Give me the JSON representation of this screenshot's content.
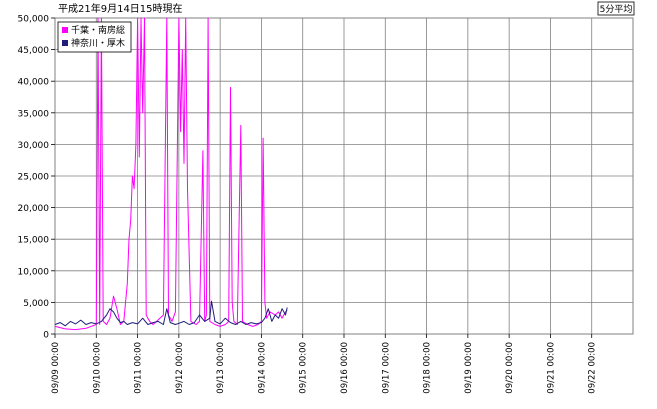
{
  "chart_data": {
    "type": "line",
    "title": "平成21年9月14日15時現在",
    "badge": "5分平均",
    "xlabel": "",
    "ylabel": "",
    "ylim": [
      0,
      50000
    ],
    "y_ticks": [
      0,
      5000,
      10000,
      15000,
      20000,
      25000,
      30000,
      35000,
      40000,
      45000,
      50000
    ],
    "y_tick_labels": [
      "0",
      "5,000",
      "10,000",
      "15,000",
      "20,000",
      "25,000",
      "30,000",
      "35,000",
      "40,000",
      "45,000",
      "50,000"
    ],
    "x_range": [
      "2009-09-09 00:00",
      "2009-09-23 00:00"
    ],
    "x_ticks": [
      "2009-09-09 00:00",
      "2009-09-10 00:00",
      "2009-09-11 00:00",
      "2009-09-12 00:00",
      "2009-09-13 00:00",
      "2009-09-14 00:00",
      "2009-09-15 00:00",
      "2009-09-16 00:00",
      "2009-09-17 00:00",
      "2009-09-18 00:00",
      "2009-09-19 00:00",
      "2009-09-20 00:00",
      "2009-09-21 00:00",
      "2009-09-22 00:00"
    ],
    "x_tick_labels": [
      "09/09 00:00",
      "09/10 00:00",
      "09/11 00:00",
      "09/12 00:00",
      "09/13 00:00",
      "09/14 00:00",
      "09/15 00:00",
      "09/16 00:00",
      "09/17 00:00",
      "09/18 00:00",
      "09/19 00:00",
      "09/20 00:00",
      "09/21 00:00",
      "09/22 00:00"
    ],
    "grid": true,
    "legend_position": "top-left",
    "series": [
      {
        "name": "千葉・南房総",
        "color": "#ff00ff",
        "points": [
          [
            "2009-09-09 00:00",
            1200
          ],
          [
            "2009-09-09 06:00",
            800
          ],
          [
            "2009-09-09 12:00",
            700
          ],
          [
            "2009-09-09 18:00",
            900
          ],
          [
            "2009-09-10 00:00",
            1500
          ],
          [
            "2009-09-10 01:00",
            50000
          ],
          [
            "2009-09-10 02:00",
            1500
          ],
          [
            "2009-09-10 03:00",
            50000
          ],
          [
            "2009-09-10 04:00",
            2000
          ],
          [
            "2009-09-10 06:00",
            1500
          ],
          [
            "2009-09-10 08:00",
            2500
          ],
          [
            "2009-09-10 10:00",
            6000
          ],
          [
            "2009-09-10 12:00",
            4000
          ],
          [
            "2009-09-10 14:00",
            1500
          ],
          [
            "2009-09-10 16:00",
            2000
          ],
          [
            "2009-09-10 18:00",
            8000
          ],
          [
            "2009-09-10 19:00",
            15000
          ],
          [
            "2009-09-10 20:00",
            18000
          ],
          [
            "2009-09-10 21:00",
            25000
          ],
          [
            "2009-09-10 22:00",
            23000
          ],
          [
            "2009-09-10 23:00",
            30000
          ],
          [
            "2009-09-11 00:00",
            50000
          ],
          [
            "2009-09-11 01:00",
            28000
          ],
          [
            "2009-09-11 02:00",
            50000
          ],
          [
            "2009-09-11 03:00",
            35000
          ],
          [
            "2009-09-11 04:00",
            50000
          ],
          [
            "2009-09-11 05:00",
            3000
          ],
          [
            "2009-09-11 07:00",
            2000
          ],
          [
            "2009-09-11 09:00",
            1500
          ],
          [
            "2009-09-11 11:00",
            2000
          ],
          [
            "2009-09-11 13:00",
            2500
          ],
          [
            "2009-09-11 15:00",
            3000
          ],
          [
            "2009-09-11 17:00",
            50000
          ],
          [
            "2009-09-11 18:00",
            3000
          ],
          [
            "2009-09-11 20:00",
            2000
          ],
          [
            "2009-09-11 22:00",
            3500
          ],
          [
            "2009-09-12 00:00",
            50000
          ],
          [
            "2009-09-12 01:00",
            32000
          ],
          [
            "2009-09-12 02:00",
            45000
          ],
          [
            "2009-09-12 03:00",
            27000
          ],
          [
            "2009-09-12 04:00",
            50000
          ],
          [
            "2009-09-12 05:00",
            23000
          ],
          [
            "2009-09-12 07:00",
            2000
          ],
          [
            "2009-09-12 10:00",
            1500
          ],
          [
            "2009-09-12 12:00",
            2000
          ],
          [
            "2009-09-12 14:00",
            29000
          ],
          [
            "2009-09-12 15:00",
            2000
          ],
          [
            "2009-09-12 16:00",
            3000
          ],
          [
            "2009-09-12 17:00",
            50000
          ],
          [
            "2009-09-12 18:00",
            2000
          ],
          [
            "2009-09-12 21:00",
            1500
          ],
          [
            "2009-09-13 00:00",
            1200
          ],
          [
            "2009-09-13 03:00",
            1500
          ],
          [
            "2009-09-13 05:00",
            2000
          ],
          [
            "2009-09-13 06:00",
            39000
          ],
          [
            "2009-09-13 07:00",
            5000
          ],
          [
            "2009-09-13 08:00",
            2000
          ],
          [
            "2009-09-13 10:00",
            1500
          ],
          [
            "2009-09-13 12:00",
            33000
          ],
          [
            "2009-09-13 13:00",
            2000
          ],
          [
            "2009-09-13 16:00",
            1500
          ],
          [
            "2009-09-13 19:00",
            1200
          ],
          [
            "2009-09-13 22:00",
            1500
          ],
          [
            "2009-09-14 00:00",
            2000
          ],
          [
            "2009-09-14 01:00",
            31000
          ],
          [
            "2009-09-14 02:00",
            5000
          ],
          [
            "2009-09-14 03:00",
            2500
          ],
          [
            "2009-09-14 05:00",
            3500
          ],
          [
            "2009-09-14 08:00",
            3000
          ],
          [
            "2009-09-14 10:00",
            3500
          ],
          [
            "2009-09-14 12:00",
            2500
          ],
          [
            "2009-09-14 14:00",
            3500
          ],
          [
            "2009-09-14 15:00",
            3800
          ]
        ]
      },
      {
        "name": "神奈川・厚木",
        "color": "#1f1f7a",
        "points": [
          [
            "2009-09-09 00:00",
            1500
          ],
          [
            "2009-09-09 03:00",
            1800
          ],
          [
            "2009-09-09 06:00",
            1300
          ],
          [
            "2009-09-09 09:00",
            2000
          ],
          [
            "2009-09-09 12:00",
            1600
          ],
          [
            "2009-09-09 15:00",
            2200
          ],
          [
            "2009-09-09 18:00",
            1500
          ],
          [
            "2009-09-09 21:00",
            1800
          ],
          [
            "2009-09-10 00:00",
            1600
          ],
          [
            "2009-09-10 03:00",
            2000
          ],
          [
            "2009-09-10 06:00",
            3000
          ],
          [
            "2009-09-10 08:00",
            4000
          ],
          [
            "2009-09-10 10:00",
            3500
          ],
          [
            "2009-09-10 12:00",
            2500
          ],
          [
            "2009-09-10 14:00",
            1800
          ],
          [
            "2009-09-10 16:00",
            2000
          ],
          [
            "2009-09-10 18:00",
            1500
          ],
          [
            "2009-09-10 21:00",
            1800
          ],
          [
            "2009-09-11 00:00",
            1600
          ],
          [
            "2009-09-11 03:00",
            2500
          ],
          [
            "2009-09-11 06:00",
            1500
          ],
          [
            "2009-09-11 09:00",
            1800
          ],
          [
            "2009-09-11 12:00",
            2000
          ],
          [
            "2009-09-11 15:00",
            1500
          ],
          [
            "2009-09-11 17:00",
            4000
          ],
          [
            "2009-09-11 19:00",
            1800
          ],
          [
            "2009-09-11 22:00",
            1500
          ],
          [
            "2009-09-12 00:00",
            1700
          ],
          [
            "2009-09-12 03:00",
            2000
          ],
          [
            "2009-09-12 06:00",
            1500
          ],
          [
            "2009-09-12 09:00",
            1800
          ],
          [
            "2009-09-12 12:00",
            3000
          ],
          [
            "2009-09-12 15:00",
            2000
          ],
          [
            "2009-09-12 18:00",
            2500
          ],
          [
            "2009-09-12 19:00",
            5200
          ],
          [
            "2009-09-12 21:00",
            2000
          ],
          [
            "2009-09-13 00:00",
            1600
          ],
          [
            "2009-09-13 03:00",
            2500
          ],
          [
            "2009-09-13 06:00",
            1800
          ],
          [
            "2009-09-13 09:00",
            1500
          ],
          [
            "2009-09-13 12:00",
            2000
          ],
          [
            "2009-09-13 15:00",
            1500
          ],
          [
            "2009-09-13 18:00",
            1800
          ],
          [
            "2009-09-13 21:00",
            1600
          ],
          [
            "2009-09-14 00:00",
            1800
          ],
          [
            "2009-09-14 02:00",
            2500
          ],
          [
            "2009-09-14 04:00",
            4000
          ],
          [
            "2009-09-14 06:00",
            2000
          ],
          [
            "2009-09-14 08:00",
            3000
          ],
          [
            "2009-09-14 10:00",
            2500
          ],
          [
            "2009-09-14 12:00",
            4000
          ],
          [
            "2009-09-14 14:00",
            3000
          ],
          [
            "2009-09-14 15:00",
            4200
          ]
        ]
      }
    ]
  }
}
